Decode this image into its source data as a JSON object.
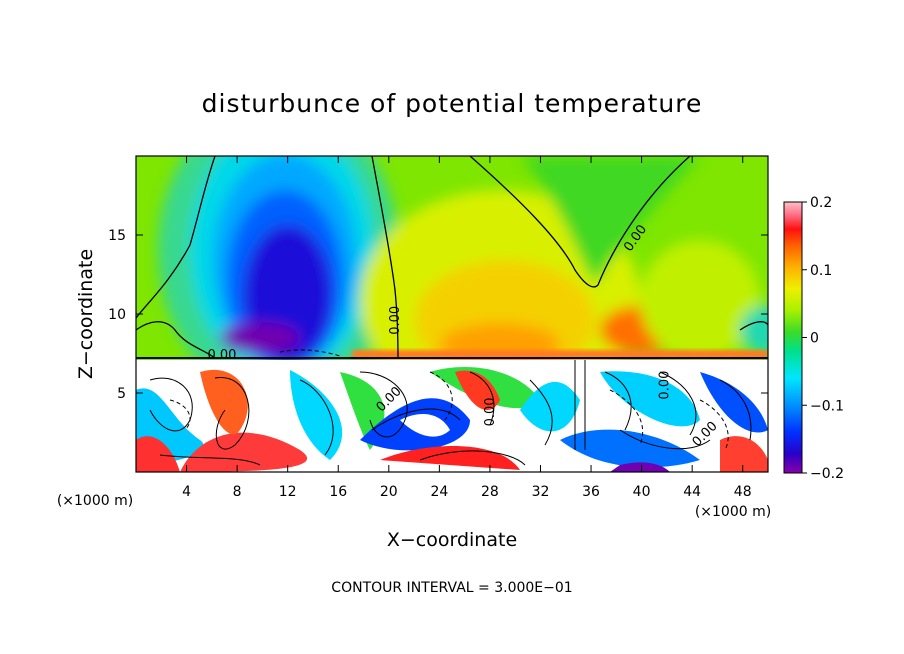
{
  "chart_data": {
    "type": "heatmap",
    "title": "disturbunce of potential temperature",
    "xlabel": "X−coordinate",
    "ylabel": "Z−coordinate",
    "x_unit_left": "(×1000 m)",
    "x_unit_right": "(×1000 m)",
    "footer": "CONTOUR INTERVAL = 3.000E−01",
    "xlim": [
      0,
      50
    ],
    "ylim": [
      0,
      20
    ],
    "xticks": [
      4,
      8,
      12,
      16,
      20,
      24,
      28,
      32,
      36,
      40,
      44,
      48
    ],
    "yticks": [
      5,
      10,
      15
    ],
    "colorbar": {
      "min": -0.2,
      "max": 0.2,
      "ticks": [
        {
          "value": 0.2,
          "label": "0.2"
        },
        {
          "value": 0.1,
          "label": "0.1"
        },
        {
          "value": 0,
          "label": "0"
        },
        {
          "value": -0.1,
          "label": "−0.1"
        },
        {
          "value": -0.2,
          "label": "−0.2"
        }
      ]
    },
    "interface_height": 7.3,
    "contour_labels": [
      {
        "text": "0.00",
        "x": 20.5,
        "y": 9.6,
        "rotate": -90
      },
      {
        "text": "0.00",
        "x": 39.5,
        "y": 14.8,
        "rotate": -55
      },
      {
        "text": "0.00",
        "x": 6.8,
        "y": 7.4,
        "rotate": 0
      },
      {
        "text": "0.00",
        "x": 20.0,
        "y": 4.6,
        "rotate": -45
      },
      {
        "text": "0.00",
        "x": 28.0,
        "y": 3.8,
        "rotate": -90
      },
      {
        "text": "0.00",
        "x": 41.8,
        "y": 5.5,
        "rotate": -90
      },
      {
        "text": "0.00",
        "x": 45.0,
        "y": 2.4,
        "rotate": -45
      }
    ]
  }
}
